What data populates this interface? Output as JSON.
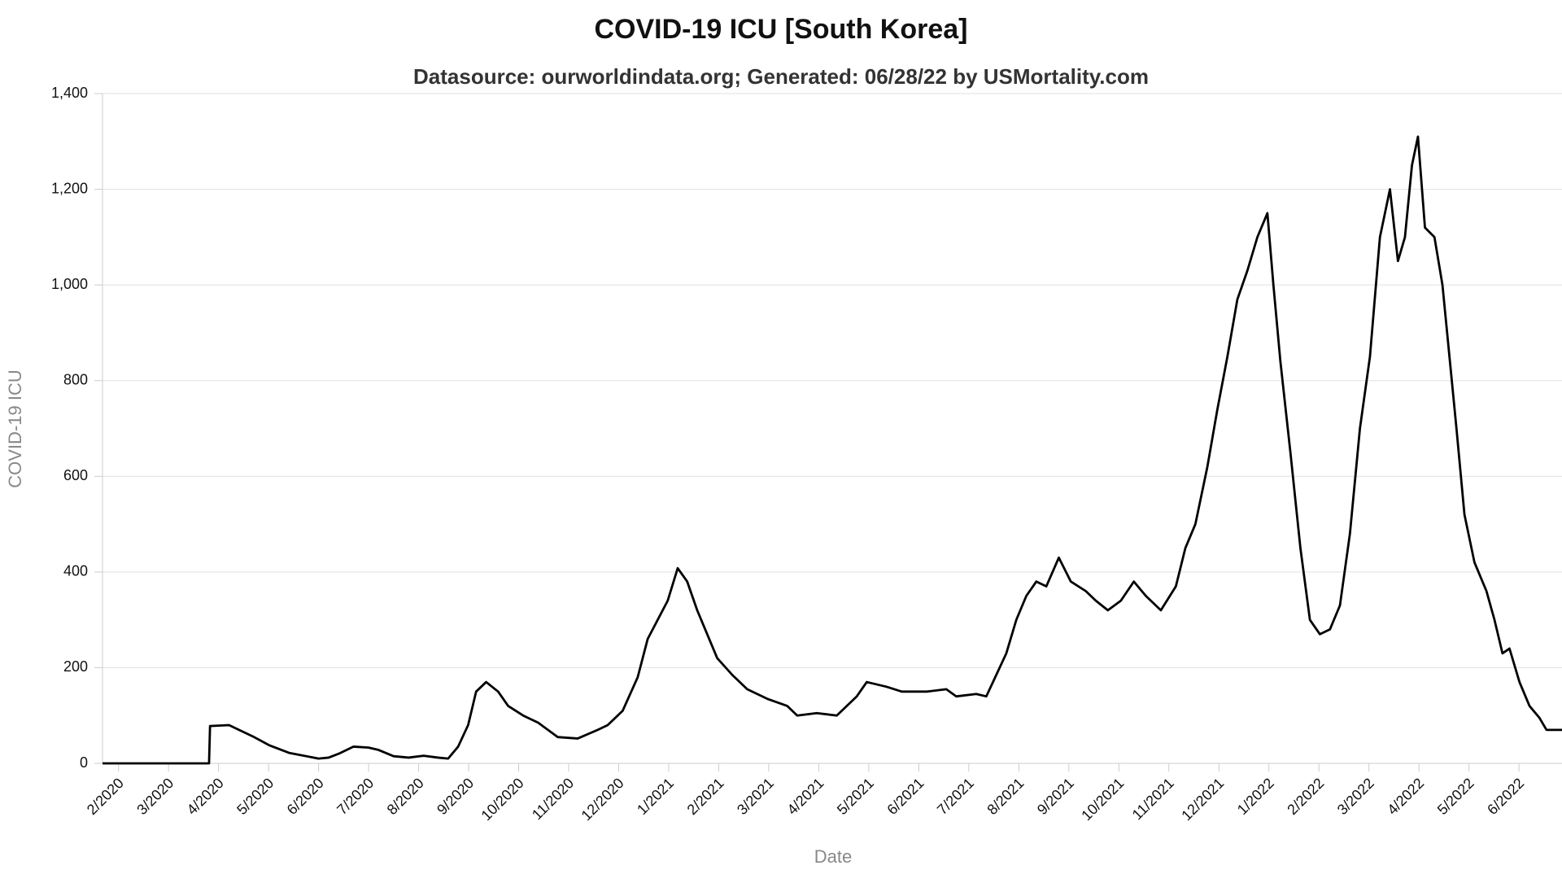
{
  "chart_data": {
    "type": "line",
    "title": "COVID-19 ICU [South Korea]",
    "subtitle": "Datasource: ourworldindata.org; Generated: 06/28/22 by USMortality.com",
    "x_label": "Date",
    "y_label": "COVID-19 ICU",
    "xlim": [
      -0.32,
      28.86
    ],
    "xticks": [
      {
        "value": 0,
        "label": "2/2020"
      },
      {
        "value": 1,
        "label": "3/2020"
      },
      {
        "value": 2,
        "label": "4/2020"
      },
      {
        "value": 3,
        "label": "5/2020"
      },
      {
        "value": 4,
        "label": "6/2020"
      },
      {
        "value": 5,
        "label": "7/2020"
      },
      {
        "value": 6,
        "label": "8/2020"
      },
      {
        "value": 7,
        "label": "9/2020"
      },
      {
        "value": 8,
        "label": "10/2020"
      },
      {
        "value": 9,
        "label": "11/2020"
      },
      {
        "value": 10,
        "label": "12/2020"
      },
      {
        "value": 11,
        "label": "1/2021"
      },
      {
        "value": 12,
        "label": "2/2021"
      },
      {
        "value": 13,
        "label": "3/2021"
      },
      {
        "value": 14,
        "label": "4/2021"
      },
      {
        "value": 15,
        "label": "5/2021"
      },
      {
        "value": 16,
        "label": "6/2021"
      },
      {
        "value": 17,
        "label": "7/2021"
      },
      {
        "value": 18,
        "label": "8/2021"
      },
      {
        "value": 19,
        "label": "9/2021"
      },
      {
        "value": 20,
        "label": "10/2021"
      },
      {
        "value": 21,
        "label": "11/2021"
      },
      {
        "value": 22,
        "label": "12/2021"
      },
      {
        "value": 23,
        "label": "1/2022"
      },
      {
        "value": 24,
        "label": "2/2022"
      },
      {
        "value": 25,
        "label": "3/2022"
      },
      {
        "value": 26,
        "label": "4/2022"
      },
      {
        "value": 27,
        "label": "5/2022"
      },
      {
        "value": 28,
        "label": "6/2022"
      }
    ],
    "ylim": [
      0,
      1400
    ],
    "yticks": [
      0,
      200,
      400,
      600,
      800,
      {
        "value": 1000,
        "label": "1,000"
      },
      {
        "value": 1200,
        "label": "1,200"
      },
      {
        "value": 1400,
        "label": "1,400"
      }
    ],
    "grid": true,
    "color": "#000000",
    "x": [
      -0.32,
      1.81,
      1.83,
      2.21,
      2.41,
      2.71,
      3.01,
      3.41,
      4.0,
      4.2,
      4.4,
      4.7,
      5.0,
      5.2,
      5.5,
      5.8,
      6.1,
      6.39,
      6.59,
      6.79,
      6.99,
      7.15,
      7.35,
      7.59,
      7.79,
      8.09,
      8.39,
      8.78,
      9.18,
      9.58,
      9.78,
      10.08,
      10.38,
      10.58,
      10.78,
      10.98,
      11.18,
      11.37,
      11.57,
      11.77,
      11.97,
      12.27,
      12.57,
      12.97,
      13.37,
      13.57,
      13.96,
      14.36,
      14.76,
      14.96,
      15.36,
      15.66,
      16.16,
      16.55,
      16.75,
      17.15,
      17.35,
      17.55,
      17.75,
      17.95,
      18.15,
      18.35,
      18.55,
      18.8,
      19.04,
      19.34,
      19.54,
      19.78,
      20.04,
      20.3,
      20.54,
      20.84,
      21.14,
      21.33,
      21.53,
      21.77,
      21.97,
      22.17,
      22.37,
      22.57,
      22.77,
      22.97,
      23.09,
      23.23,
      23.43,
      23.63,
      23.82,
      24.02,
      24.22,
      24.42,
      24.62,
      24.82,
      25.02,
      25.22,
      25.42,
      25.58,
      25.72,
      25.86,
      25.98,
      26.12,
      26.31,
      26.47,
      26.61,
      26.75,
      26.91,
      27.11,
      27.35,
      27.51,
      27.67,
      27.81,
      28.01,
      28.21,
      28.41,
      28.55,
      28.86
    ],
    "values": [
      0,
      0,
      78,
      80,
      70,
      55,
      38,
      22,
      10,
      12,
      20,
      35,
      33,
      28,
      15,
      12,
      16,
      12,
      10,
      35,
      80,
      150,
      170,
      150,
      120,
      100,
      85,
      55,
      52,
      70,
      80,
      110,
      180,
      260,
      300,
      340,
      408,
      380,
      320,
      270,
      220,
      185,
      155,
      135,
      120,
      100,
      105,
      100,
      140,
      170,
      160,
      150,
      150,
      155,
      140,
      145,
      140,
      185,
      230,
      300,
      350,
      380,
      370,
      430,
      380,
      360,
      340,
      320,
      340,
      380,
      350,
      320,
      370,
      450,
      500,
      620,
      740,
      850,
      970,
      1030,
      1100,
      1150,
      1000,
      840,
      650,
      450,
      300,
      270,
      280,
      330,
      480,
      700,
      850,
      1100,
      1200,
      1050,
      1100,
      1250,
      1310,
      1120,
      1100,
      1000,
      850,
      700,
      520,
      420,
      360,
      300,
      230,
      240,
      170,
      120,
      95,
      70,
      70
    ]
  }
}
